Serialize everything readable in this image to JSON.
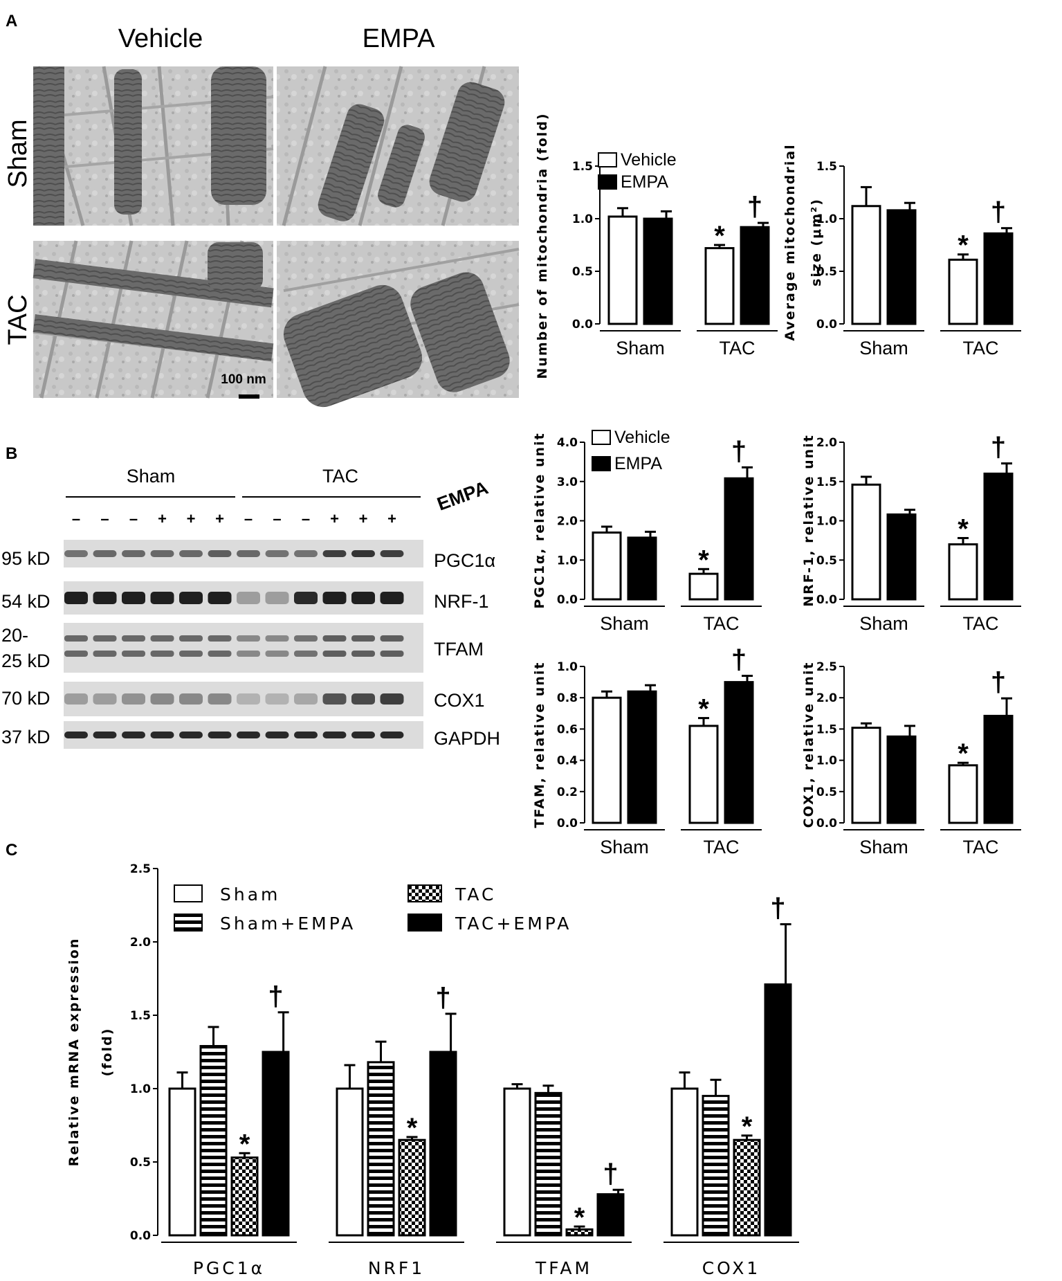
{
  "figure": {
    "panel_labels": [
      "A",
      "B",
      "C"
    ],
    "em": {
      "col_headers": [
        "Vehicle",
        "EMPA"
      ],
      "row_headers": [
        "Sham",
        "TAC"
      ],
      "scale_bar": "100 nm"
    },
    "western": {
      "group_labels": [
        "Sham",
        "TAC"
      ],
      "treatment_label": "EMPA",
      "signs": [
        "–",
        "–",
        "–",
        "+",
        "+",
        "+",
        "–",
        "–",
        "–",
        "+",
        "+",
        "+"
      ],
      "mw_labels": [
        "95 kD",
        "54 kD",
        "20-",
        "25 kD",
        "70 kD",
        "37 kD"
      ],
      "protein_labels": [
        "PGC1α",
        "NRF-1",
        "TFAM",
        "COX1",
        "GAPDH"
      ]
    },
    "significance": {
      "vs_sham": "*",
      "vs_tac": "†"
    }
  },
  "colors": {
    "vehicle_fill": "#ffffff",
    "empa_fill": "#000000",
    "bar_stroke": "#000000"
  },
  "chart_data": [
    {
      "id": "mito_number",
      "type": "bar",
      "ylabel": "Number of mitochondria (fold)",
      "ylim": [
        0,
        1.5
      ],
      "yticks": [
        "0.0",
        "0.5",
        "1.0",
        "1.5"
      ],
      "categories": [
        "Sham",
        "TAC"
      ],
      "series": [
        {
          "name": "Vehicle",
          "values": [
            1.02,
            0.72
          ],
          "errors": [
            0.08,
            0.03
          ]
        },
        {
          "name": "EMPA",
          "values": [
            1.0,
            0.92
          ],
          "errors": [
            0.07,
            0.04
          ]
        }
      ],
      "annotations": [
        {
          "category": "TAC",
          "series": "Vehicle",
          "mark": "*"
        },
        {
          "category": "TAC",
          "series": "EMPA",
          "mark": "†"
        }
      ],
      "legend": [
        "Vehicle",
        "EMPA"
      ]
    },
    {
      "id": "mito_size",
      "type": "bar",
      "ylabel_lines": [
        "Average mitochondrial",
        "size (μm²)"
      ],
      "ylim": [
        0,
        1.5
      ],
      "yticks": [
        "0.0",
        "0.5",
        "1.0",
        "1.5"
      ],
      "categories": [
        "Sham",
        "TAC"
      ],
      "series": [
        {
          "name": "Vehicle",
          "values": [
            1.12,
            0.61
          ],
          "errors": [
            0.18,
            0.05
          ]
        },
        {
          "name": "EMPA",
          "values": [
            1.08,
            0.86
          ],
          "errors": [
            0.07,
            0.05
          ]
        }
      ],
      "annotations": [
        {
          "category": "TAC",
          "series": "Vehicle",
          "mark": "*"
        },
        {
          "category": "TAC",
          "series": "EMPA",
          "mark": "†"
        }
      ]
    },
    {
      "id": "pgc1a_protein",
      "type": "bar",
      "ylabel": "PGC1α, relative unit",
      "ylim": [
        0,
        4.0
      ],
      "yticks": [
        "0.0",
        "1.0",
        "2.0",
        "3.0",
        "4.0"
      ],
      "categories": [
        "Sham",
        "TAC"
      ],
      "series": [
        {
          "name": "Vehicle",
          "values": [
            1.7,
            0.65
          ],
          "errors": [
            0.15,
            0.12
          ]
        },
        {
          "name": "EMPA",
          "values": [
            1.57,
            3.08
          ],
          "errors": [
            0.15,
            0.28
          ]
        }
      ],
      "annotations": [
        {
          "category": "TAC",
          "series": "Vehicle",
          "mark": "*"
        },
        {
          "category": "TAC",
          "series": "EMPA",
          "mark": "†"
        }
      ],
      "legend": [
        "Vehicle",
        "EMPA"
      ]
    },
    {
      "id": "nrf1_protein",
      "type": "bar",
      "ylabel": "NRF-1, relative unit",
      "ylim": [
        0,
        2.0
      ],
      "yticks": [
        "0.0",
        "0.5",
        "1.0",
        "1.5",
        "2.0"
      ],
      "categories": [
        "Sham",
        "TAC"
      ],
      "series": [
        {
          "name": "Vehicle",
          "values": [
            1.46,
            0.7
          ],
          "errors": [
            0.1,
            0.08
          ]
        },
        {
          "name": "EMPA",
          "values": [
            1.08,
            1.6
          ],
          "errors": [
            0.06,
            0.13
          ]
        }
      ],
      "annotations": [
        {
          "category": "TAC",
          "series": "Vehicle",
          "mark": "*"
        },
        {
          "category": "TAC",
          "series": "EMPA",
          "mark": "†"
        }
      ]
    },
    {
      "id": "tfam_protein",
      "type": "bar",
      "ylabel": "TFAM, relative unit",
      "ylim": [
        0,
        1.0
      ],
      "yticks": [
        "0.0",
        "0.2",
        "0.4",
        "0.6",
        "0.8",
        "1.0"
      ],
      "categories": [
        "Sham",
        "TAC"
      ],
      "series": [
        {
          "name": "Vehicle",
          "values": [
            0.8,
            0.62
          ],
          "errors": [
            0.04,
            0.05
          ]
        },
        {
          "name": "EMPA",
          "values": [
            0.84,
            0.9
          ],
          "errors": [
            0.04,
            0.04
          ]
        }
      ],
      "annotations": [
        {
          "category": "TAC",
          "series": "Vehicle",
          "mark": "*"
        },
        {
          "category": "TAC",
          "series": "EMPA",
          "mark": "†"
        }
      ]
    },
    {
      "id": "cox1_protein",
      "type": "bar",
      "ylabel": "COX1, relative unit",
      "ylim": [
        0,
        2.5
      ],
      "yticks": [
        "0.0",
        "0.5",
        "1.0",
        "1.5",
        "2.0",
        "2.5"
      ],
      "categories": [
        "Sham",
        "TAC"
      ],
      "series": [
        {
          "name": "Vehicle",
          "values": [
            1.52,
            0.92
          ],
          "errors": [
            0.07,
            0.04
          ]
        },
        {
          "name": "EMPA",
          "values": [
            1.38,
            1.71
          ],
          "errors": [
            0.17,
            0.28
          ]
        }
      ],
      "annotations": [
        {
          "category": "TAC",
          "series": "Vehicle",
          "mark": "*"
        },
        {
          "category": "TAC",
          "series": "EMPA",
          "mark": "†"
        }
      ]
    },
    {
      "id": "mrna_expression",
      "type": "bar",
      "ylabel_lines": [
        "Relative mRNA expression",
        "(fold)"
      ],
      "ylim": [
        0,
        2.5
      ],
      "yticks": [
        "0.0",
        "0.5",
        "1.0",
        "1.5",
        "2.0",
        "2.5"
      ],
      "categories": [
        "PGC1α",
        "NRF1",
        "TFAM",
        "COX1"
      ],
      "series": [
        {
          "name": "Sham",
          "values": [
            1.0,
            1.0,
            1.0,
            1.0
          ],
          "errors": [
            0.11,
            0.16,
            0.03,
            0.11
          ]
        },
        {
          "name": "Sham+EMPA",
          "values": [
            1.29,
            1.18,
            0.97,
            0.95
          ],
          "errors": [
            0.13,
            0.14,
            0.05,
            0.11
          ]
        },
        {
          "name": "TAC",
          "values": [
            0.53,
            0.65,
            0.04,
            0.65
          ],
          "errors": [
            0.03,
            0.02,
            0.02,
            0.03
          ]
        },
        {
          "name": "TAC+EMPA",
          "values": [
            1.25,
            1.25,
            0.28,
            1.71
          ],
          "errors": [
            0.27,
            0.26,
            0.03,
            0.41
          ]
        }
      ],
      "annotations": [
        {
          "category": "PGC1α",
          "series": "TAC",
          "mark": "*"
        },
        {
          "category": "PGC1α",
          "series": "TAC+EMPA",
          "mark": "†"
        },
        {
          "category": "NRF1",
          "series": "TAC",
          "mark": "*"
        },
        {
          "category": "NRF1",
          "series": "TAC+EMPA",
          "mark": "†"
        },
        {
          "category": "TFAM",
          "series": "TAC",
          "mark": "*"
        },
        {
          "category": "TFAM",
          "series": "TAC+EMPA",
          "mark": "†"
        },
        {
          "category": "COX1",
          "series": "TAC",
          "mark": "*"
        },
        {
          "category": "COX1",
          "series": "TAC+EMPA",
          "mark": "†"
        }
      ],
      "legend": [
        "Sham",
        "Sham+EMPA",
        "TAC",
        "TAC+EMPA"
      ]
    }
  ]
}
